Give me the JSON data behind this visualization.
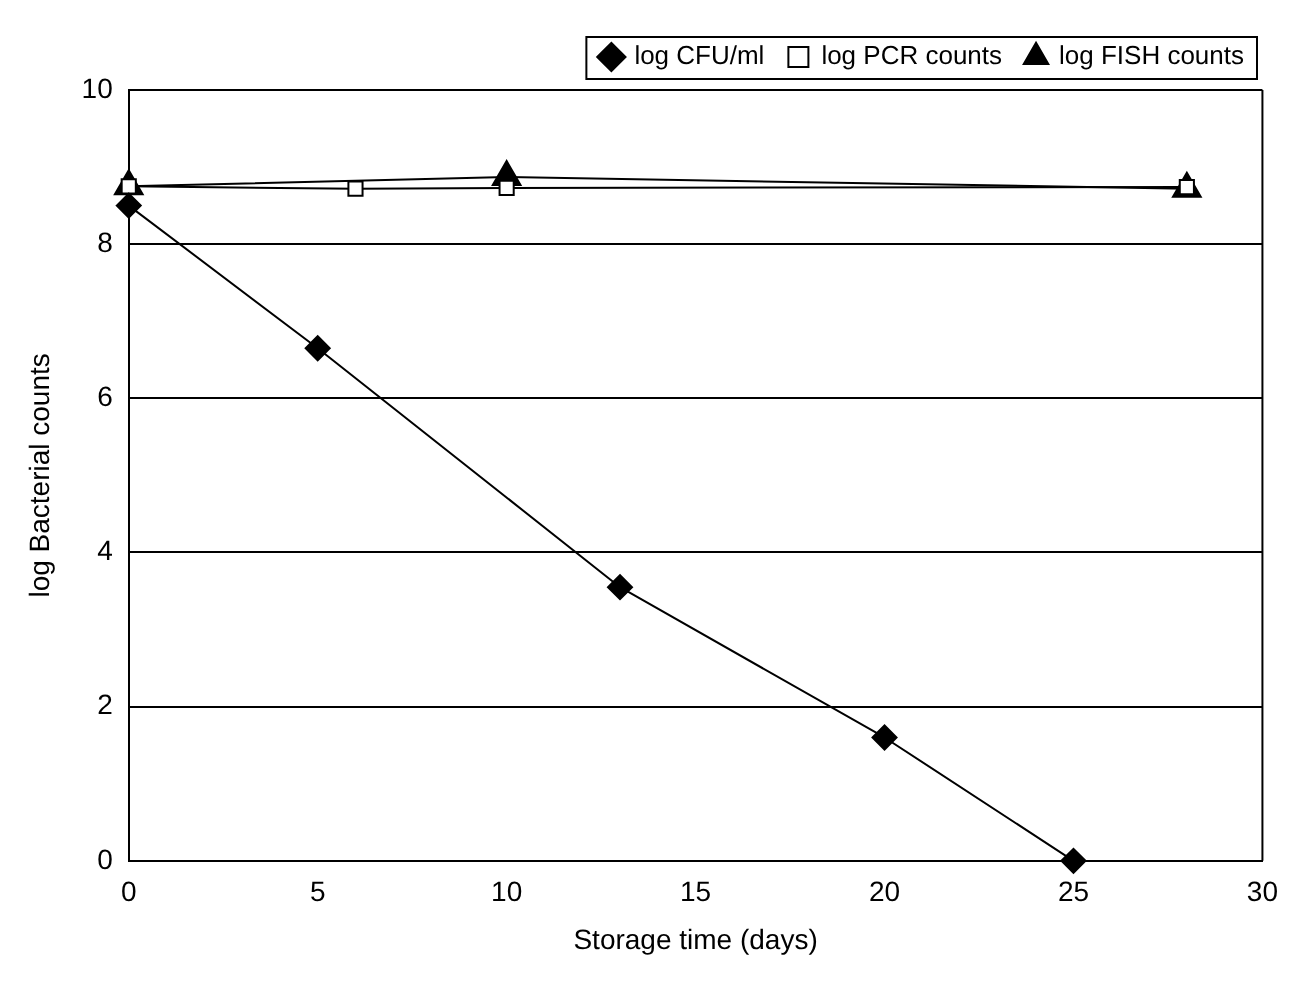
{
  "chart_data": {
    "type": "line",
    "xlabel": "Storage time (days)",
    "ylabel": "log Bacterial counts",
    "xlim": [
      0,
      30
    ],
    "xticks": [
      0,
      5,
      10,
      15,
      20,
      25,
      30
    ],
    "ylim": [
      0,
      10
    ],
    "yticks": [
      0,
      2,
      4,
      6,
      8,
      10
    ],
    "grid": "y",
    "legend": "top right",
    "series": [
      {
        "name": "log CFU/ml",
        "color": "#000000",
        "marker": "diamond",
        "x": [
          0,
          5,
          13,
          20,
          25
        ],
        "values": [
          8.5,
          6.65,
          3.55,
          1.6,
          0
        ]
      },
      {
        "name": "log PCR counts",
        "color": "#000000",
        "marker": "square",
        "x": [
          0,
          6,
          10,
          28
        ],
        "values": [
          8.75,
          8.72,
          8.73,
          8.74
        ]
      },
      {
        "name": "log FISH counts",
        "color": "#000000",
        "marker": "triangle",
        "x": [
          0,
          10,
          28
        ],
        "values": [
          8.75,
          8.87,
          8.72
        ]
      }
    ]
  }
}
